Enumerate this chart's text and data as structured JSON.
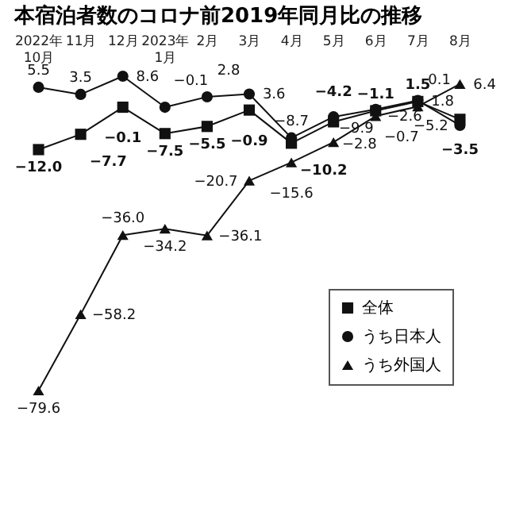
{
  "chart_data": {
    "type": "line",
    "title": "本宿泊者数のコロナ前2019年同月比の推移",
    "categories": [
      "2022年\n10月",
      "11月",
      "12月",
      "2023年\n1月",
      "2月",
      "3月",
      "4月",
      "5月",
      "6月",
      "7月",
      "8月"
    ],
    "series": [
      {
        "name": "全体",
        "color": "#111111",
        "marker": "square",
        "values": [
          -12.0,
          -7.7,
          -0.1,
          -7.5,
          -5.5,
          -0.9,
          -10.2,
          -4.2,
          -1.1,
          1.5,
          -3.5
        ],
        "value_labels": [
          "−12.0",
          "−7.7",
          "−0.1",
          "−7.5",
          "−5.5",
          "−0.9",
          "−10.2",
          "−4.2",
          "−1.1",
          "1.5",
          "−3.5"
        ]
      },
      {
        "name": "うち日本人",
        "color": "#111111",
        "marker": "circle",
        "values": [
          5.5,
          3.5,
          8.6,
          -0.1,
          2.8,
          3.6,
          -8.7,
          -2.8,
          -0.7,
          1.8,
          -5.2
        ],
        "value_labels": [
          "5.5",
          "3.5",
          "8.6",
          "−0.1",
          "2.8",
          "3.6",
          "−8.7",
          "−2.8",
          "−0.7",
          "1.8",
          "−5.2"
        ]
      },
      {
        "name": "うち外国人",
        "color": "#111111",
        "marker": "triangle",
        "values": [
          -79.6,
          -58.2,
          -36.0,
          -34.2,
          -36.1,
          -20.7,
          -15.6,
          -9.9,
          -2.6,
          0.1,
          6.4
        ],
        "value_labels": [
          "−79.6",
          "−58.2",
          "−36.0",
          "−34.2",
          "−36.1",
          "−20.7",
          "−15.6",
          "−9.9",
          "−2.6",
          "0.1",
          "6.4"
        ]
      }
    ],
    "legend": "bottom right"
  }
}
